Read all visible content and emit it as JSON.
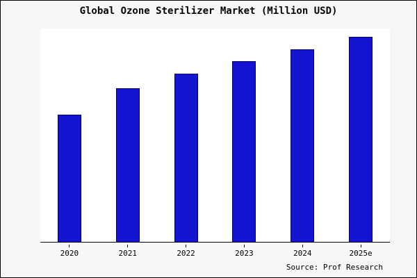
{
  "chart_data": {
    "type": "bar",
    "title": "Global Ozone Sterilizer Market (Million USD)",
    "categories": [
      "2020",
      "2021",
      "2022",
      "2023",
      "2024",
      "2025e"
    ],
    "values": [
      62,
      75,
      82,
      88,
      94,
      100
    ],
    "xlabel": "",
    "ylabel": "",
    "ylim": [
      0,
      104
    ],
    "grid": false,
    "legend": false,
    "bar_color": "#1414d0",
    "bar_edge_color": "#00006e",
    "source_note": "Source: Prof Research"
  },
  "colors": {
    "figure_background": "#f7f7f7",
    "plot_background": "#ffffff",
    "axis": "#000000",
    "border": "#000000",
    "text": "#000000"
  }
}
